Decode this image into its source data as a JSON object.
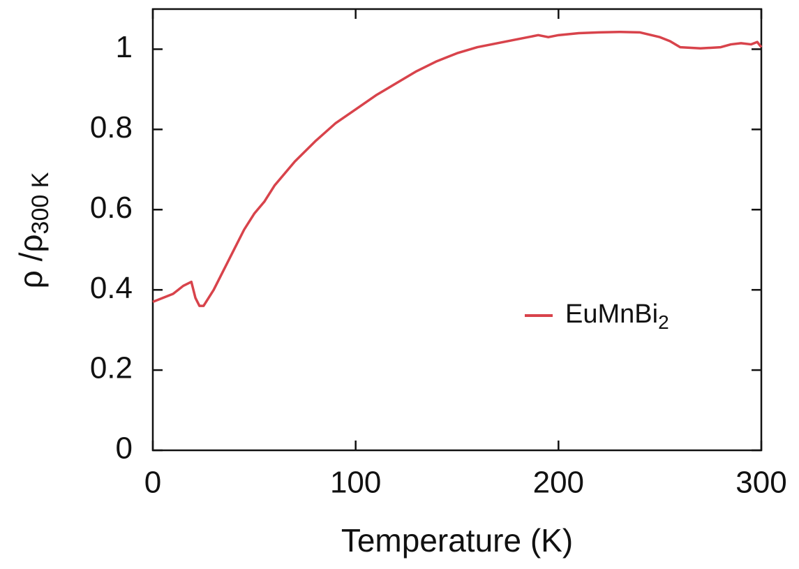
{
  "chart_data": {
    "type": "line",
    "xlabel": "Temperature (K)",
    "ylabel": {
      "main": "ρ /ρ",
      "subscript": "300 K"
    },
    "xlim": [
      0,
      300
    ],
    "ylim": [
      0,
      1.1
    ],
    "xticks": [
      0,
      100,
      200,
      300
    ],
    "yticks": [
      0,
      0.2,
      0.4,
      0.6,
      0.8,
      1
    ],
    "grid": false,
    "legend": "right",
    "x": [
      0,
      5,
      10,
      15,
      19,
      21,
      23,
      25,
      30,
      35,
      40,
      45,
      50,
      55,
      60,
      70,
      80,
      90,
      100,
      110,
      120,
      130,
      140,
      150,
      160,
      170,
      180,
      190,
      195,
      200,
      210,
      220,
      230,
      240,
      250,
      255,
      260,
      270,
      280,
      285,
      290,
      295,
      298,
      300
    ],
    "series": [
      {
        "name": {
          "main": "EuMnBi",
          "subscript": "2"
        },
        "color": "#d8434b",
        "values": [
          0.37,
          0.38,
          0.39,
          0.41,
          0.42,
          0.38,
          0.36,
          0.36,
          0.4,
          0.45,
          0.5,
          0.55,
          0.59,
          0.62,
          0.66,
          0.72,
          0.77,
          0.815,
          0.85,
          0.885,
          0.915,
          0.945,
          0.97,
          0.99,
          1.005,
          1.015,
          1.025,
          1.035,
          1.03,
          1.035,
          1.04,
          1.042,
          1.043,
          1.042,
          1.03,
          1.02,
          1.005,
          1.002,
          1.005,
          1.012,
          1.015,
          1.012,
          1.018,
          1.005
        ]
      }
    ]
  }
}
